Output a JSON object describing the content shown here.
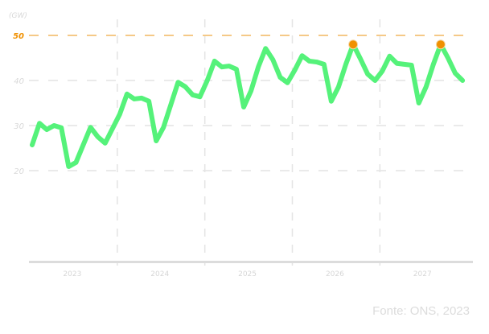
{
  "chart_data": {
    "type": "line",
    "title": "",
    "ylabel": "(GW)",
    "xlabel": "",
    "ylim": [
      0,
      50
    ],
    "yticks": [
      20,
      30,
      40,
      50
    ],
    "x_tick_labels": [
      "2023",
      "2024",
      "2025",
      "2026",
      "2027"
    ],
    "grid": true,
    "reference_line": {
      "value": 50,
      "color": "#f5c987",
      "label_color": "#f09000"
    },
    "line_color": "#55f27a",
    "highlight_color": "#f09000",
    "series": [
      {
        "x_start": "2023-01",
        "frequency": "monthly",
        "values": [
          25.7,
          30.5,
          29.1,
          30.0,
          29.5,
          20.9,
          21.8,
          25.7,
          29.6,
          27.5,
          26.1,
          29.3,
          32.5,
          37.0,
          35.9,
          36.1,
          35.4,
          26.6,
          29.6,
          34.6,
          39.6,
          38.6,
          36.8,
          36.4,
          40.0,
          44.3,
          43.0,
          43.2,
          42.5,
          34.1,
          37.7,
          43.0,
          47.1,
          44.6,
          40.7,
          39.5,
          42.3,
          45.5,
          44.3,
          44.1,
          43.6,
          35.4,
          38.6,
          43.6,
          48.0,
          44.8,
          41.4,
          40.0,
          42.1,
          45.4,
          43.8,
          43.6,
          43.4,
          35.0,
          38.6,
          43.6,
          48.0,
          45.0,
          41.6,
          40.0
        ]
      }
    ],
    "highlighted_points": [
      44,
      56
    ]
  },
  "source": "Fonte: ONS, 2023"
}
